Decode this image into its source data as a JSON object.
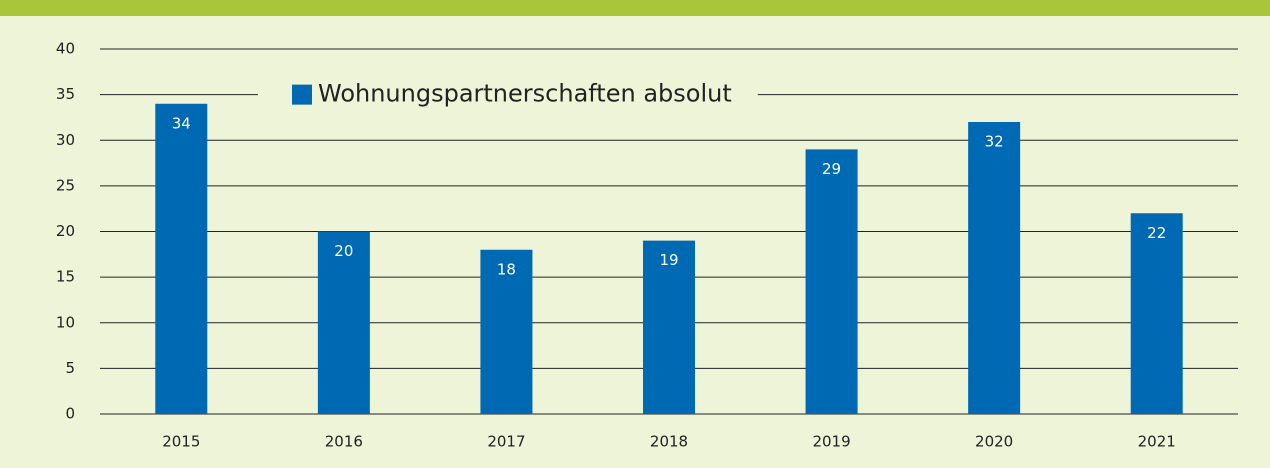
{
  "chart_data": {
    "type": "bar",
    "categories": [
      "2015",
      "2016",
      "2017",
      "2018",
      "2019",
      "2020",
      "2021"
    ],
    "series": [
      {
        "name": "Wohnungspartnerschaften absolut",
        "color": "#0069b4",
        "values": [
          34,
          20,
          18,
          19,
          29,
          32,
          22
        ]
      }
    ],
    "ylim": [
      0,
      40
    ],
    "yticks": [
      0,
      5,
      10,
      15,
      20,
      25,
      30,
      35,
      40
    ],
    "grid": true,
    "legend": "top"
  }
}
